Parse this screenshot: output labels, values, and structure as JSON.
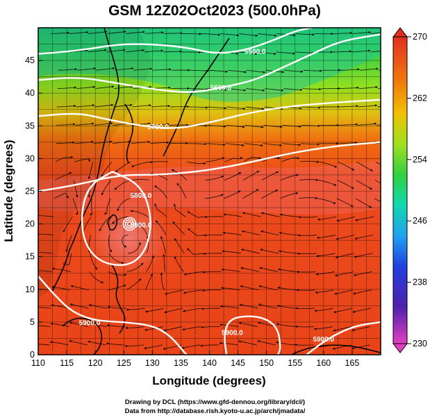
{
  "title": "GSM 12Z02Oct2023 (500.0hPa)",
  "xlabel": "Longitude (degrees)",
  "ylabel": "Latitude  (degrees)",
  "credits": [
    "Drawing by DCL (https://www.gfd-dennou.org/library/dcl/)",
    "Data from http://database.rish.kyoto-u.ac.jp/arch/jmadata/"
  ],
  "chart_data": {
    "type": "heatmap",
    "xlim": [
      110,
      170
    ],
    "ylim": [
      0,
      50
    ],
    "x_ticks": [
      110,
      115,
      120,
      125,
      130,
      135,
      140,
      145,
      150,
      155,
      160,
      165
    ],
    "y_ticks": [
      0,
      5,
      10,
      15,
      20,
      25,
      30,
      35,
      40,
      45
    ],
    "grid": true,
    "colorbar": {
      "range": [
        230,
        270
      ],
      "ticks": [
        230,
        238,
        246,
        254,
        262,
        270
      ],
      "placement": "right"
    },
    "height_contours": [
      {
        "label": "5900.0",
        "label_at": [
          119,
          4.5
        ],
        "points": [
          [
            110,
            12
          ],
          [
            113,
            9
          ],
          [
            116,
            6.5
          ],
          [
            120,
            5.2
          ],
          [
            125,
            5
          ],
          [
            130,
            4.5
          ],
          [
            133,
            3
          ],
          [
            135,
            1
          ],
          [
            136,
            0
          ]
        ]
      },
      {
        "label": "5900.0",
        "label_at": [
          128,
          19.5
        ],
        "points": [
          [
            123,
            28
          ],
          [
            119,
            26
          ],
          [
            117.5,
            22
          ],
          [
            118,
            17
          ],
          [
            121,
            14
          ],
          [
            126,
            13.5
          ],
          [
            129,
            16
          ],
          [
            130,
            21
          ],
          [
            128,
            26
          ],
          [
            123,
            28
          ]
        ]
      },
      {
        "label": "5900.0",
        "label_at": [
          144,
          3
        ],
        "points": [
          [
            143,
            0
          ],
          [
            142.5,
            3
          ],
          [
            143.5,
            5.5
          ],
          [
            147,
            6
          ],
          [
            150,
            5.5
          ],
          [
            152,
            4
          ],
          [
            152.5,
            1
          ],
          [
            152,
            0
          ]
        ]
      },
      {
        "label": "5900.0",
        "label_at": [
          160,
          2
        ],
        "points": [
          [
            157,
            0
          ],
          [
            160,
            2
          ],
          [
            163,
            3.5
          ],
          [
            166,
            4.5
          ],
          [
            170,
            5
          ]
        ]
      },
      {
        "label": "5800.0",
        "label_at": [
          128,
          24
        ],
        "points": [
          [
            110,
            25
          ],
          [
            117,
            26
          ],
          [
            124,
            27.5
          ],
          [
            131,
            27.5
          ],
          [
            138,
            28
          ],
          [
            145,
            29
          ],
          [
            155,
            31
          ],
          [
            163,
            32
          ],
          [
            170,
            32.5
          ]
        ]
      },
      {
        "label": "5700.0",
        "label_at": [
          131,
          34.5
        ],
        "points": [
          [
            110,
            36.5
          ],
          [
            117,
            37
          ],
          [
            122,
            36
          ],
          [
            128,
            35
          ],
          [
            134,
            34.5
          ],
          [
            140,
            35.5
          ],
          [
            147,
            37
          ],
          [
            154,
            38
          ],
          [
            161,
            38.5
          ],
          [
            170,
            39
          ]
        ]
      },
      {
        "label": "5600.0",
        "label_at": [
          142,
          40.5
        ],
        "points": [
          [
            110,
            42
          ],
          [
            117,
            42.5
          ],
          [
            124,
            41.5
          ],
          [
            131,
            40.5
          ],
          [
            137,
            40
          ],
          [
            143,
            41
          ],
          [
            148,
            42
          ],
          [
            153,
            44
          ],
          [
            158,
            46
          ],
          [
            163,
            48
          ],
          [
            170,
            49
          ]
        ]
      },
      {
        "label": "5500.0",
        "label_at": [
          148,
          46
        ],
        "points": [
          [
            110,
            46
          ],
          [
            117,
            46.5
          ],
          [
            124,
            47.5
          ],
          [
            130,
            47.5
          ],
          [
            136,
            47
          ],
          [
            141,
            46
          ],
          [
            146,
            46.5
          ],
          [
            151,
            48
          ],
          [
            155,
            49.5
          ],
          [
            158,
            50
          ]
        ]
      }
    ],
    "cyclone_center": [
      126,
      20
    ]
  }
}
